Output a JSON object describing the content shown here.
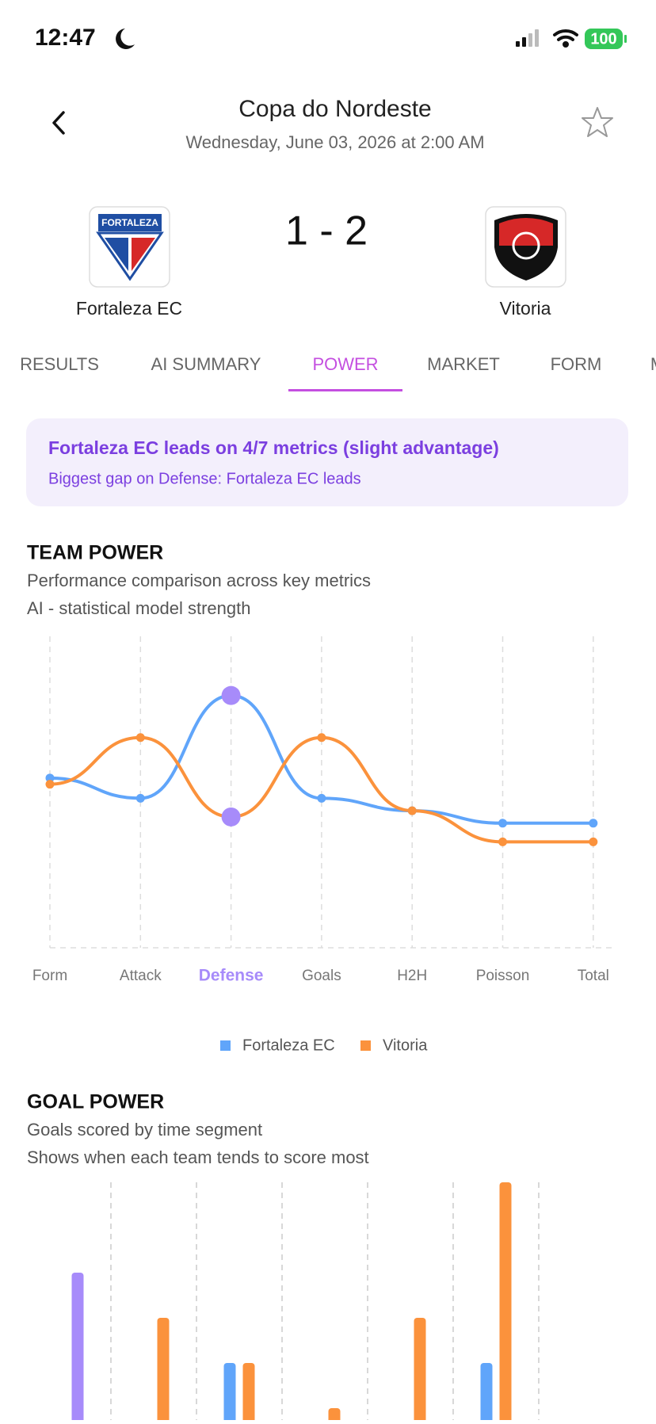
{
  "status": {
    "time": "12:47",
    "battery": "100"
  },
  "header": {
    "title": "Copa do Nordeste",
    "subtitle": "Wednesday, June 03, 2026 at 2:00 AM"
  },
  "match": {
    "home": "Fortaleza EC",
    "home_logo_text": "FORTALEZA",
    "away": "Vitoria",
    "score": "1 - 2"
  },
  "tabs": [
    "RESULTS",
    "AI SUMMARY",
    "POWER",
    "MARKET",
    "FORM",
    "M"
  ],
  "active_tab": 2,
  "summary": {
    "headline": "Fortaleza EC leads on 4/7 metrics (slight advantage)",
    "detail": "Biggest gap on Defense: Fortaleza EC leads"
  },
  "chart_data": [
    {
      "type": "line",
      "title": "TEAM POWER",
      "subtitle": "Performance comparison across key metrics",
      "note": "AI - statistical model strength",
      "categories": [
        "Form",
        "Attack",
        "Defense",
        "Goals",
        "H2H",
        "Poisson",
        "Total"
      ],
      "highlight": "Defense",
      "highlight_color": "#a78bfa",
      "series": [
        {
          "name": "Fortaleza EC",
          "color": "#60a5fa",
          "values": [
            54.5,
            48,
            81,
            48,
            44,
            40,
            40
          ]
        },
        {
          "name": "Vitoria",
          "color": "#fb923c",
          "values": [
            52.5,
            67.5,
            42,
            67.5,
            44,
            34,
            34
          ]
        }
      ],
      "ylim": [
        0,
        100
      ],
      "grid": true,
      "legend": "bottom"
    },
    {
      "type": "bar",
      "title": "GOAL POWER",
      "subtitle": "Goals scored by time segment",
      "note": "Shows when each team tends to score most",
      "categories": [
        null,
        null,
        null,
        null,
        null,
        null
      ],
      "highlight_index": 0,
      "highlight_color": "#a78bfa",
      "series": [
        {
          "color": "#60a5fa",
          "values": [
            0,
            0,
            2,
            0,
            0,
            2
          ]
        },
        {
          "color": "#fb923c",
          "values": [
            4,
            3,
            2,
            1,
            3,
            6
          ]
        }
      ],
      "ylim": [
        0,
        6
      ],
      "grid": true
    }
  ]
}
